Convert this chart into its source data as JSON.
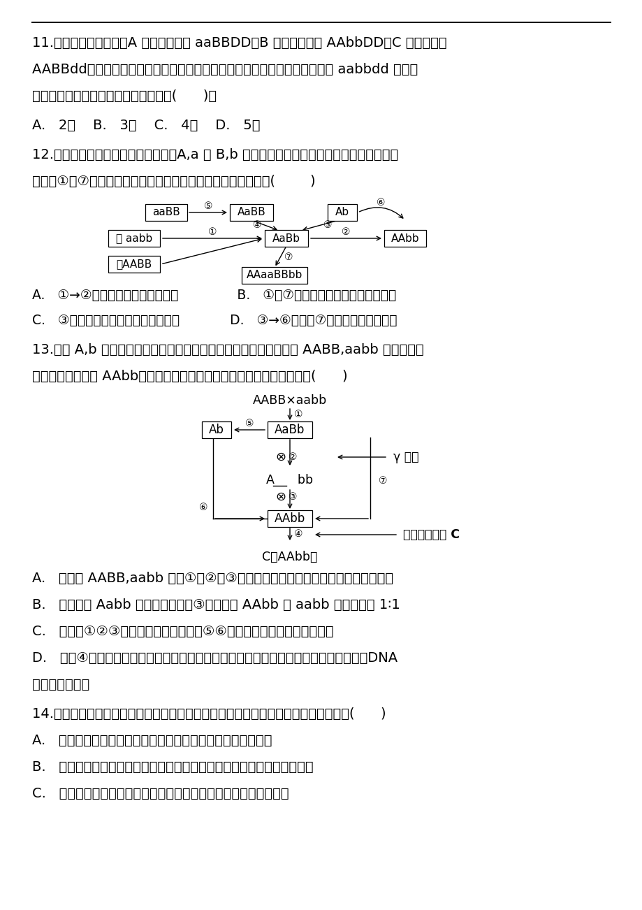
{
  "bg_color": "#ffffff",
  "text_color": "#000000",
  "line_color": "#000000",
  "q11_lines": [
    "11.现有三个番茄品种，A 种的基因型为 aaBBDD，B 种的基因型为 AAbbDD，C 的基因型为",
    "AABBdd，三种等位基因分别位于三对同源染色体上。若通过杂交育种要获得 aabbdd 植株，",
    "且每年只繁殖一代，至少需要的时间为(      )。"
  ],
  "q11_options": "A.   2年    B.   3年    C.   4年    D.   5年",
  "q12_lines": [
    "12.如下图甲、乙表示水稻两个品种，A,a 和 B,b 表示分别位于两对同源染色体上的两对等位",
    "基因，①～⑦表示培育水稻新品种的过程，则下列说法错误的是(        )"
  ],
  "q12_options_lines": [
    "A.   ①→②过程简便，但培育周期长              B.   ①和⑦的变异都发生于有丝分裂间期",
    "C.   ③过程常用的方法是花药离体培养            D.   ③→⑥过程与⑦过程的育种原理相同"
  ],
  "q13_lines": [
    "13.假设 A,b 代表玉米的优良基因，这两种基因是自由组合的。现有 AABB,aabb 两个品种，",
    "为培育出优良品种 AAbb，可采用的方法如图所示，有关叙述不正确的是(      )"
  ],
  "q13_opt_A": "A.   由品种 AABB,aabb 经过①、②、③过程培育出新品种的育种方式称为杂交育种",
  "q13_opt_B": "B.   基因型为 Aabb 的类型经过过程③，子代中 AAbb 与 aabb 的数量比是 1∶1",
  "q13_opt_C": "C.   与过程①②③的育种方法相比，过程⑤⑥的优势是明显缩短了育种年限",
  "q13_opt_D1": "D.   过程④在完成目的基因和运载体的结合时，必须用到的工具酶是限制性核酸内切酶、DNA",
  "q13_opt_D2": "连接酶和运载体",
  "q14_lines": [
    "14.如图所示，以长颈鹿的进化为例说明达尔文的自然选择学说。以下说法不正确的是(      )",
    "A.   长颈鹿个体之间许多性状存在差异，如颈和前肢的长短不同",
    "B.   生物产生后代的数量往往超过生活环境所能承受的数量而引起生存斗争",
    "C.   颈和前肢长些的个体，在生存斗争中容易得到食物而生存并繁殖"
  ]
}
